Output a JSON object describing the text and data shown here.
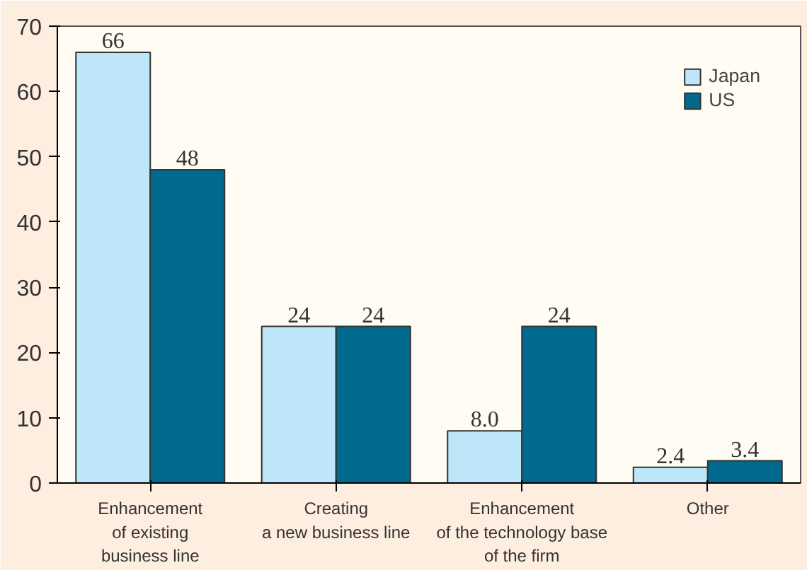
{
  "chart_data": {
    "type": "bar",
    "categories": [
      "Enhancement\nof existing\nbusiness line",
      "Creating\na new business line",
      "Enhancement\nof the technology base\nof the firm",
      "Other"
    ],
    "series": [
      {
        "name": "Japan",
        "color": "#bde6f8",
        "values": [
          66,
          24,
          8.0,
          2.4
        ],
        "value_labels": [
          "66",
          "24",
          "8.0",
          "2.4"
        ]
      },
      {
        "name": "US",
        "color": "#006a8e",
        "values": [
          48,
          24,
          24,
          3.4
        ],
        "value_labels": [
          "48",
          "24",
          "24",
          "3.4"
        ]
      }
    ],
    "ylim": [
      0,
      70
    ],
    "yticks": [
      0,
      10,
      20,
      30,
      40,
      50,
      60,
      70
    ],
    "grid": false,
    "legend": "top right"
  }
}
